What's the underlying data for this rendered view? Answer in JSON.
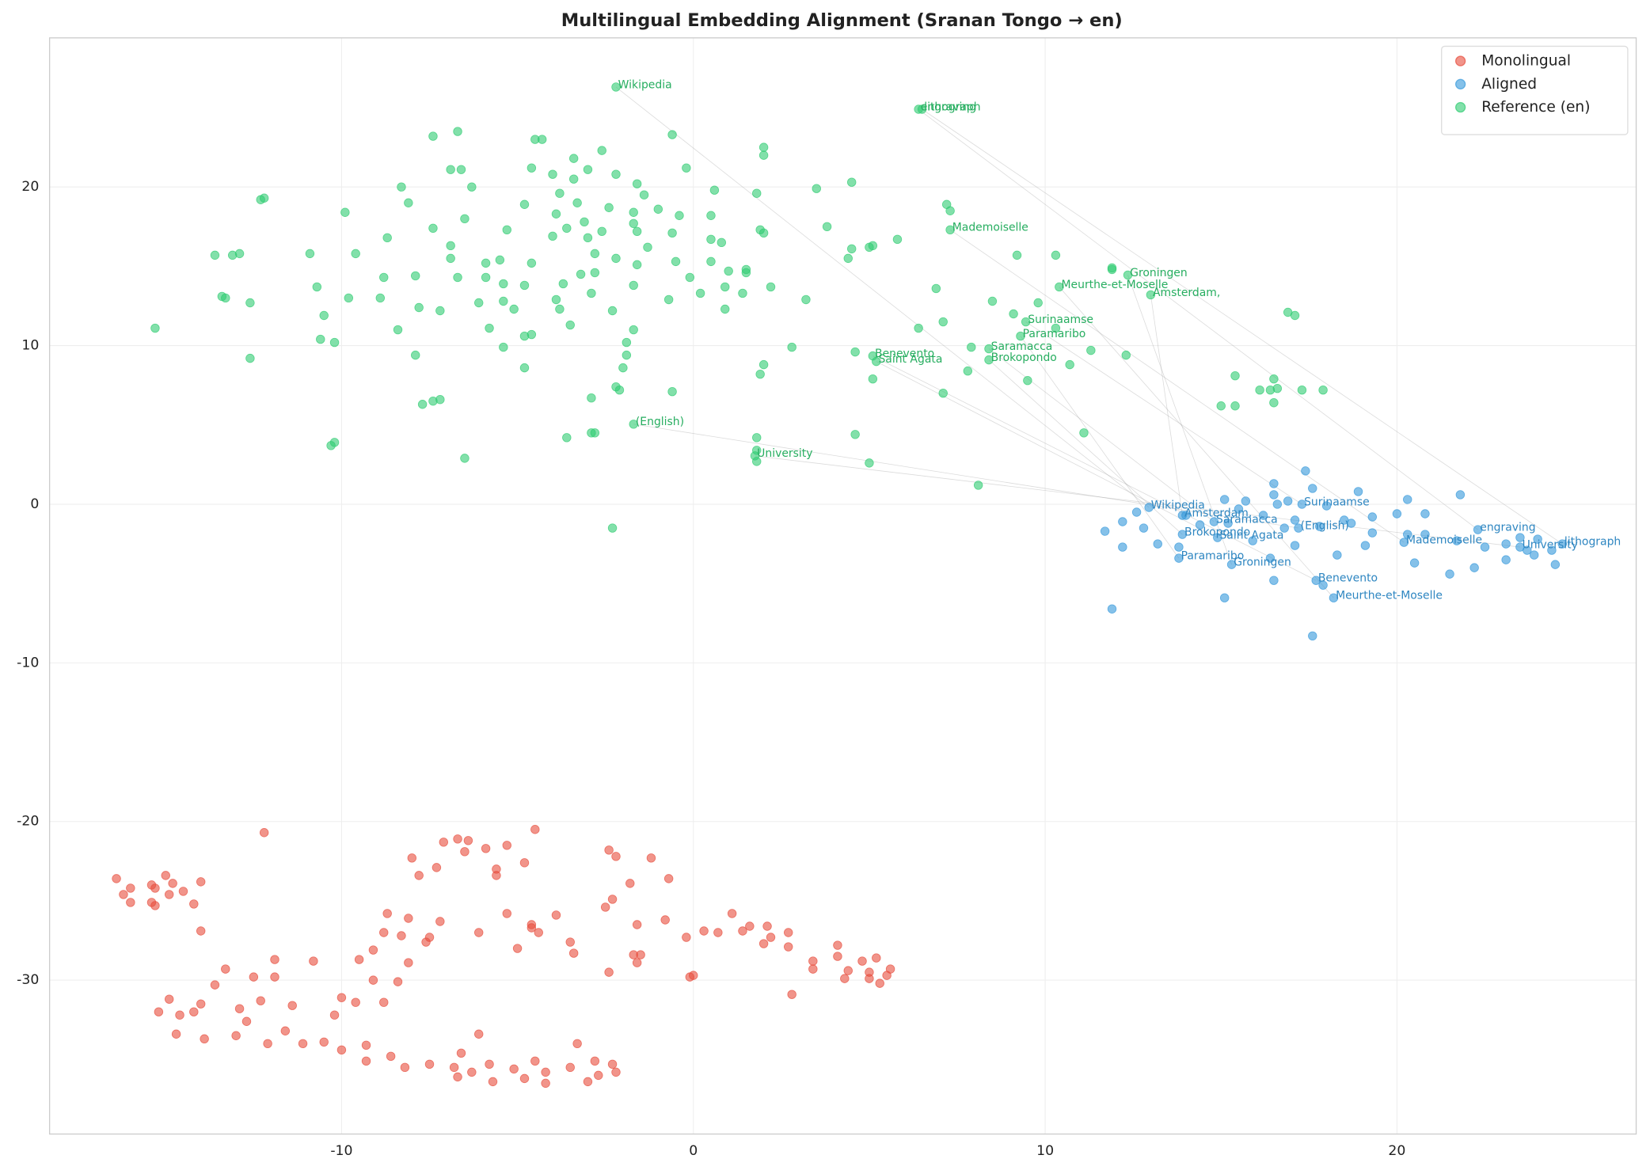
{
  "chart_data": {
    "type": "scatter",
    "title": "Multilingual Embedding Alignment (Sranan Tongo → en)",
    "xlim": [
      -18.3,
      26.8
    ],
    "ylim": [
      -39.7,
      29.4
    ],
    "xticks": [
      -10,
      0,
      10,
      20
    ],
    "yticks": [
      -30,
      -20,
      -10,
      0,
      10,
      20
    ],
    "grid": true,
    "legend": "upper right",
    "series": [
      {
        "name": "Monolingual",
        "color": "#e74c3c",
        "label_color": "#c0392b",
        "x": [
          -16.4,
          -16.2,
          -16.0,
          -16.0,
          -15.4,
          -15.4,
          -15.3,
          -15.3,
          -15.0,
          -14.9,
          -14.8,
          -14.5,
          -14.2,
          -14.0,
          -14.0,
          -12.2,
          -15.2,
          -14.9,
          -14.7,
          -14.6,
          -14.2,
          -14.0,
          -13.9,
          -13.6,
          -13.3,
          -13.0,
          -12.9,
          -12.7,
          -12.5,
          -12.3,
          -12.1,
          -11.9,
          -11.9,
          -11.6,
          -11.4,
          -11.1,
          -10.8,
          -10.5,
          -10.2,
          -10.0,
          -10.0,
          -9.6,
          -9.5,
          -9.3,
          -9.3,
          -9.1,
          -9.1,
          -8.8,
          -8.8,
          -8.7,
          -8.6,
          -8.4,
          -8.3,
          -8.2,
          -8.1,
          -8.1,
          -8.0,
          -7.8,
          -7.6,
          -7.5,
          -7.5,
          -7.3,
          -7.2,
          -7.1,
          -6.8,
          -6.7,
          -6.7,
          -6.6,
          -6.5,
          -6.4,
          -6.3,
          -6.1,
          -6.1,
          -5.9,
          -5.8,
          -5.7,
          -5.6,
          -5.6,
          -5.3,
          -5.3,
          -5.1,
          -5.0,
          -4.8,
          -4.8,
          -4.6,
          -4.6,
          -4.5,
          -4.5,
          -4.4,
          -4.2,
          -4.2,
          -3.9,
          -3.5,
          -3.5,
          -3.4,
          -3.3,
          -3.0,
          -2.8,
          -2.7,
          -2.5,
          -2.4,
          -2.4,
          -2.3,
          -2.3,
          -2.2,
          -2.2,
          -1.8,
          -1.7,
          -1.6,
          -1.6,
          -1.5,
          -1.2,
          -0.7,
          -0.8,
          -0.2,
          -0.1,
          0.0,
          0.3,
          0.7,
          1.1,
          1.4,
          1.6,
          2.0,
          2.1,
          2.2,
          2.7,
          2.7,
          2.8,
          3.4,
          3.4,
          4.1,
          4.1,
          4.3,
          4.4,
          4.8,
          5.0,
          5.0,
          5.2,
          5.3,
          5.5,
          5.6
        ],
        "y": [
          -23.6,
          -24.6,
          -24.2,
          -25.1,
          -24.0,
          -25.1,
          -25.3,
          -24.2,
          -23.4,
          -24.6,
          -23.9,
          -24.4,
          -25.2,
          -23.8,
          -26.9,
          -20.7,
          -32.0,
          -31.2,
          -33.4,
          -32.2,
          -32.0,
          -31.5,
          -33.7,
          -30.3,
          -29.3,
          -33.5,
          -31.8,
          -32.6,
          -29.8,
          -31.3,
          -34.0,
          -29.8,
          -28.7,
          -33.2,
          -31.6,
          -34.0,
          -28.8,
          -33.9,
          -32.2,
          -34.4,
          -31.1,
          -31.4,
          -28.7,
          -34.1,
          -35.1,
          -30.0,
          -28.1,
          -27.0,
          -31.4,
          -25.8,
          -34.8,
          -30.1,
          -27.2,
          -35.5,
          -28.9,
          -26.1,
          -22.3,
          -23.4,
          -27.6,
          -27.3,
          -35.3,
          -22.9,
          -26.3,
          -21.3,
          -35.5,
          -36.1,
          -21.1,
          -34.6,
          -21.9,
          -21.2,
          -35.8,
          -27.0,
          -33.4,
          -21.7,
          -35.3,
          -36.4,
          -23.0,
          -23.4,
          -25.8,
          -21.5,
          -35.6,
          -28.0,
          -36.2,
          -22.6,
          -26.5,
          -26.7,
          -20.5,
          -35.1,
          -27.0,
          -35.8,
          -36.5,
          -25.9,
          -35.5,
          -27.6,
          -28.3,
          -34.0,
          -36.4,
          -35.1,
          -36.0,
          -25.4,
          -21.8,
          -29.5,
          -35.3,
          -24.9,
          -35.8,
          -22.2,
          -23.9,
          -28.4,
          -26.5,
          -28.9,
          -28.4,
          -22.3,
          -23.6,
          -26.2,
          -27.3,
          -29.8,
          -29.7,
          -26.9,
          -27.0,
          -25.8,
          -26.9,
          -26.6,
          -27.7,
          -26.6,
          -27.3,
          -27.9,
          -27.0,
          -30.9,
          -28.8,
          -29.3,
          -27.8,
          -28.5,
          -29.9,
          -29.4,
          -28.8,
          -29.5,
          -29.9,
          -28.6,
          -30.2,
          -29.7,
          -29.3
        ],
        "annotated": []
      },
      {
        "name": "Aligned",
        "color": "#3498db",
        "label_color": "#2e86c1",
        "x": [
          11.7,
          12.2,
          12.2,
          12.6,
          12.8,
          13.2,
          13.8,
          14.0,
          14.4,
          15.1,
          15.2,
          15.5,
          15.7,
          15.9,
          16.2,
          16.5,
          16.5,
          16.6,
          16.8,
          16.9,
          17.1,
          17.1,
          17.4,
          17.6,
          17.8,
          18.0,
          18.3,
          18.5,
          18.7,
          18.9,
          19.1,
          19.3,
          19.3,
          20.0,
          20.3,
          20.3,
          20.5,
          20.8,
          20.8,
          21.5,
          21.8,
          21.7,
          22.2,
          22.5,
          23.1,
          23.1,
          23.5,
          23.7,
          23.9,
          24.0,
          24.4,
          24.5,
          11.9,
          15.1,
          17.6,
          16.5,
          17.9,
          16.4
        ],
        "y": [
          -1.7,
          -1.1,
          -2.7,
          -0.5,
          -1.5,
          -2.5,
          -2.7,
          -0.7,
          -1.3,
          0.3,
          -1.2,
          -0.3,
          0.2,
          -2.3,
          -0.7,
          1.3,
          0.6,
          0.0,
          -1.5,
          0.2,
          -1.0,
          -2.6,
          2.1,
          1.0,
          -1.4,
          -0.1,
          -3.2,
          -1.0,
          -1.2,
          0.8,
          -2.6,
          -0.8,
          -1.8,
          -0.6,
          -1.9,
          0.3,
          -3.7,
          -0.6,
          -1.9,
          -4.4,
          0.6,
          -2.3,
          -4.0,
          -2.7,
          -2.5,
          -3.5,
          -2.1,
          -2.9,
          -3.2,
          -2.2,
          -2.9,
          -3.8,
          -6.6,
          -5.9,
          -8.3,
          -4.8,
          -5.1,
          -3.4
        ],
        "annotated": [
          {
            "label": "Wikipedia",
            "x": 12.95,
            "y": -0.2
          },
          {
            "label": "Amsterdam,",
            "x": 13.9,
            "y": -0.7
          },
          {
            "label": "Saramacca",
            "x": 14.8,
            "y": -1.1
          },
          {
            "label": "Brokopondo",
            "x": 13.9,
            "y": -1.9
          },
          {
            "label": "Saint Agata",
            "x": 14.9,
            "y": -2.1
          },
          {
            "label": "Surinaamse",
            "x": 17.3,
            "y": 0.0
          },
          {
            "label": "(English)",
            "x": 17.2,
            "y": -1.5
          },
          {
            "label": "Paramaribo",
            "x": 13.8,
            "y": -3.4
          },
          {
            "label": "Groningen",
            "x": 15.3,
            "y": -3.8
          },
          {
            "label": "Benevento",
            "x": 17.7,
            "y": -4.8
          },
          {
            "label": "Meurthe-et-Moselle",
            "x": 18.2,
            "y": -5.9
          },
          {
            "label": "Mademoiselle",
            "x": 20.2,
            "y": -2.4
          },
          {
            "label": "engraving",
            "x": 22.3,
            "y": -1.6
          },
          {
            "label": "University",
            "x": 23.5,
            "y": -2.7
          },
          {
            "label": "lithograph",
            "x": 24.7,
            "y": -2.5
          }
        ]
      },
      {
        "name": "Reference (en)",
        "color": "#2ecc71",
        "label_color": "#27ae60",
        "x": [
          -13.6,
          -13.4,
          -13.3,
          -13.1,
          -12.9,
          -12.6,
          -12.6,
          -12.3,
          -12.2,
          -15.3,
          -10.9,
          -10.7,
          -10.6,
          -10.5,
          -10.2,
          -10.2,
          -10.3,
          -9.9,
          -9.8,
          -9.6,
          -8.9,
          -8.8,
          -8.7,
          -8.4,
          -8.3,
          -8.1,
          -7.9,
          -7.9,
          -7.8,
          -7.7,
          -7.4,
          -7.4,
          -7.4,
          -7.2,
          -7.2,
          -6.9,
          -6.9,
          -6.9,
          -6.7,
          -6.7,
          -6.6,
          -6.5,
          -6.5,
          -6.3,
          -6.1,
          -5.9,
          -5.9,
          -5.8,
          -5.5,
          -5.4,
          -5.4,
          -5.4,
          -5.3,
          -5.1,
          -4.8,
          -4.8,
          -4.8,
          -4.8,
          -4.6,
          -4.6,
          -4.6,
          -4.5,
          -4.3,
          -4.0,
          -4.0,
          -3.9,
          -3.9,
          -3.8,
          -3.8,
          -3.7,
          -3.6,
          -3.5,
          -3.4,
          -3.4,
          -3.3,
          -3.2,
          -3.1,
          -3.0,
          -3.0,
          -2.9,
          -2.8,
          -2.8,
          -2.6,
          -2.6,
          -2.4,
          -2.3,
          -2.2,
          -2.2,
          -2.2,
          -2.1,
          -2.0,
          -1.9,
          -1.9,
          -1.7,
          -1.7,
          -1.7,
          -1.7,
          -1.6,
          -1.6,
          -1.6,
          -1.4,
          -1.3,
          -1.0,
          -0.7,
          -0.6,
          -0.5,
          -0.4,
          -0.2,
          -0.1,
          0.2,
          0.5,
          0.5,
          0.5,
          0.6,
          0.8,
          0.9,
          0.9,
          1.0,
          1.4,
          1.5,
          1.5,
          1.8,
          1.9,
          1.9,
          2.0,
          2.0,
          2.0,
          2.0,
          2.2,
          2.8,
          3.2,
          3.5,
          3.8,
          4.4,
          4.5,
          4.5,
          4.6,
          4.6,
          5.0,
          5.0,
          5.1,
          5.1,
          5.8,
          6.4,
          6.9,
          7.1,
          7.1,
          7.2,
          7.3,
          7.8,
          7.9,
          8.1,
          8.5,
          9.1,
          9.2,
          9.5,
          9.8,
          10.3,
          10.3,
          10.7,
          11.1,
          11.3,
          11.9,
          11.9,
          12.3,
          15.0,
          15.4,
          15.4,
          16.1,
          16.4,
          16.5,
          16.6,
          16.5,
          16.9,
          17.1,
          17.3,
          17.9,
          -0.6,
          -0.6,
          -2.3,
          -3.6,
          -2.9,
          -2.8,
          -2.9,
          1.8,
          1.8,
          1.8
        ],
        "y": [
          15.7,
          13.1,
          13.0,
          15.7,
          15.8,
          12.7,
          9.2,
          19.2,
          19.3,
          11.1,
          15.8,
          13.7,
          10.4,
          11.9,
          10.2,
          3.9,
          3.7,
          18.4,
          13.0,
          15.8,
          13.0,
          14.3,
          16.8,
          11.0,
          20.0,
          19.0,
          14.4,
          9.4,
          12.4,
          6.3,
          6.5,
          17.4,
          23.2,
          12.2,
          6.6,
          15.5,
          16.3,
          21.1,
          23.5,
          14.3,
          21.1,
          2.9,
          18.0,
          20.0,
          12.7,
          15.2,
          14.3,
          11.1,
          15.4,
          13.9,
          12.8,
          9.9,
          17.3,
          12.3,
          8.6,
          13.8,
          10.6,
          18.9,
          10.7,
          15.2,
          21.2,
          23.0,
          23.0,
          16.9,
          20.8,
          18.3,
          12.9,
          19.6,
          12.3,
          13.9,
          17.4,
          11.3,
          21.8,
          20.5,
          19.0,
          14.5,
          17.8,
          21.1,
          16.8,
          13.3,
          15.8,
          14.6,
          17.2,
          22.3,
          18.7,
          12.2,
          20.8,
          15.5,
          7.4,
          7.2,
          8.6,
          10.2,
          9.4,
          17.7,
          11.0,
          13.8,
          18.4,
          17.2,
          15.1,
          20.2,
          19.5,
          16.2,
          18.6,
          12.9,
          17.1,
          15.3,
          18.2,
          21.2,
          14.3,
          13.3,
          15.3,
          16.7,
          18.2,
          19.8,
          16.5,
          13.7,
          12.3,
          14.7,
          13.3,
          14.8,
          14.6,
          19.6,
          17.3,
          8.2,
          17.1,
          22.5,
          22.0,
          8.8,
          13.7,
          9.9,
          12.9,
          19.9,
          17.5,
          15.5,
          16.1,
          20.3,
          9.6,
          4.4,
          2.6,
          16.2,
          16.3,
          7.9,
          16.7,
          11.1,
          13.6,
          11.5,
          7.0,
          18.9,
          18.5,
          8.4,
          9.9,
          1.2,
          12.8,
          12.0,
          15.7,
          7.8,
          12.7,
          15.7,
          11.1,
          8.8,
          4.5,
          9.7,
          14.9,
          14.8,
          9.4,
          6.2,
          6.2,
          8.1,
          7.2,
          7.2,
          7.9,
          7.3,
          6.4,
          12.1,
          11.9,
          7.2,
          7.2,
          23.3,
          7.1,
          -1.5,
          4.2,
          4.5,
          4.5,
          6.7,
          4.2,
          2.7,
          3.4
        ],
        "annotated": [
          {
            "label": "Wikipedia",
            "x": -2.2,
            "y": 26.3
          },
          {
            "label": "lithograph",
            "x": 6.5,
            "y": 24.9
          },
          {
            "label": "engraving",
            "x": 6.4,
            "y": 24.9
          },
          {
            "label": "Mademoiselle",
            "x": 7.3,
            "y": 17.3
          },
          {
            "label": "Groningen",
            "x": 12.35,
            "y": 14.45
          },
          {
            "label": "Meurthe-et-Moselle",
            "x": 10.4,
            "y": 13.7
          },
          {
            "label": "Amsterdam,",
            "x": 13.0,
            "y": 13.2
          },
          {
            "label": "Surinaamse",
            "x": 9.45,
            "y": 11.5
          },
          {
            "label": "Paramaribo",
            "x": 9.3,
            "y": 10.6
          },
          {
            "label": "Saramacca",
            "x": 8.4,
            "y": 9.8
          },
          {
            "label": "Brokopondo",
            "x": 8.4,
            "y": 9.1
          },
          {
            "label": "Benevento",
            "x": 5.1,
            "y": 9.35
          },
          {
            "label": "Saint Agata",
            "x": 5.2,
            "y": 9.0
          },
          {
            "label": "(English)",
            "x": -1.7,
            "y": 5.05
          },
          {
            "label": "University",
            "x": 1.75,
            "y": 3.05
          }
        ]
      }
    ]
  }
}
